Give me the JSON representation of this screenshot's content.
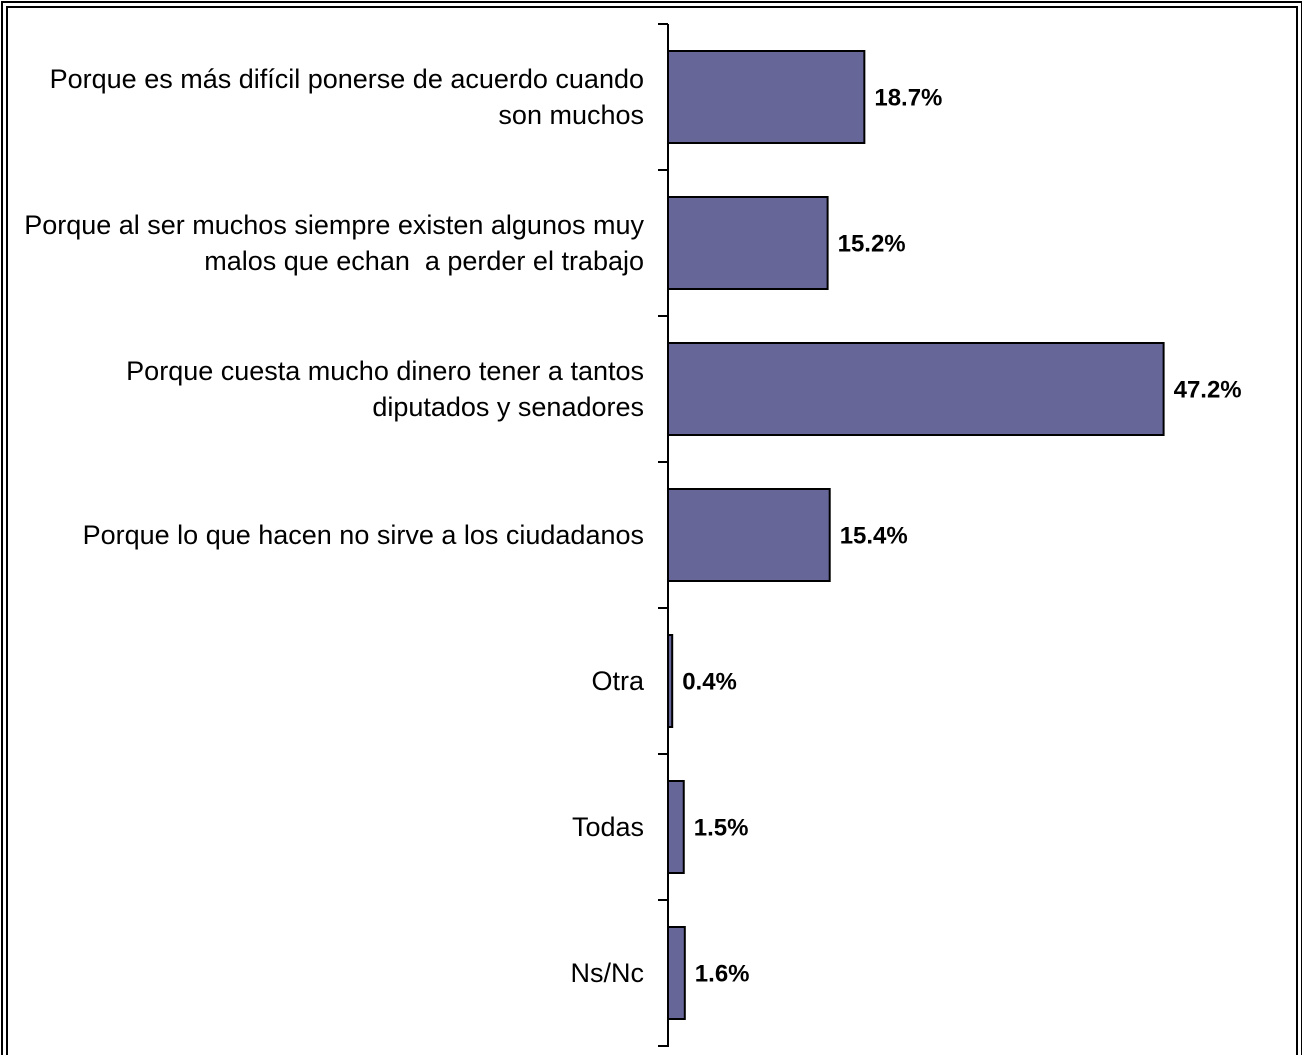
{
  "chart_data": {
    "type": "bar",
    "orientation": "horizontal",
    "categories": [
      "Porque es más difícil ponerse de acuerdo cuando son muchos",
      "Porque al ser muchos siempre existen algunos muy malos que echan  a perder el trabajo",
      "Porque cuesta mucho dinero tener a tantos diputados y senadores",
      "Porque lo que hacen no sirve a los ciudadanos",
      "Otra",
      "Todas",
      "Ns/Nc"
    ],
    "values": [
      18.7,
      15.2,
      47.2,
      15.4,
      0.4,
      1.5,
      1.6
    ],
    "value_labels": [
      "18.7%",
      "15.2%",
      "47.2%",
      "15.4%",
      "0.4%",
      "1.5%",
      "1.6%"
    ],
    "color": "#666699",
    "xlim": [
      0,
      60
    ]
  }
}
